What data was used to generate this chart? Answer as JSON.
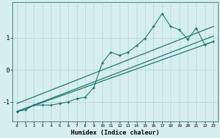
{
  "title": "",
  "xlabel": "Humidex (Indice chaleur)",
  "ylabel": "",
  "bg_color": "#d6eeee",
  "grid_color": "#b8d8d8",
  "line_color": "#1a7070",
  "xlim": [
    -0.5,
    23.5
  ],
  "ylim": [
    -1.6,
    2.1
  ],
  "yticks": [
    -1,
    0,
    1
  ],
  "xticks": [
    0,
    1,
    2,
    3,
    4,
    5,
    6,
    7,
    8,
    9,
    10,
    11,
    12,
    13,
    14,
    15,
    16,
    17,
    18,
    19,
    20,
    21,
    22,
    23
  ],
  "zigzag_x": [
    0,
    1,
    2,
    3,
    4,
    5,
    6,
    7,
    8,
    9,
    10,
    11,
    12,
    13,
    14,
    15,
    16,
    17,
    18,
    19,
    20,
    21,
    22,
    23
  ],
  "zigzag_y": [
    -1.3,
    -1.25,
    -1.1,
    -1.1,
    -1.1,
    -1.05,
    -1.0,
    -0.9,
    -0.85,
    -0.55,
    0.22,
    0.55,
    0.45,
    0.55,
    0.75,
    0.98,
    1.35,
    1.75,
    1.35,
    1.25,
    0.95,
    1.3,
    0.78,
    0.88
  ],
  "line1_x": [
    0,
    23
  ],
  "line1_y": [
    -1.3,
    0.88
  ],
  "line2_x": [
    0,
    23
  ],
  "line2_y": [
    -1.3,
    1.05
  ],
  "line3_x": [
    0,
    23
  ],
  "line3_y": [
    -1.05,
    1.35
  ]
}
